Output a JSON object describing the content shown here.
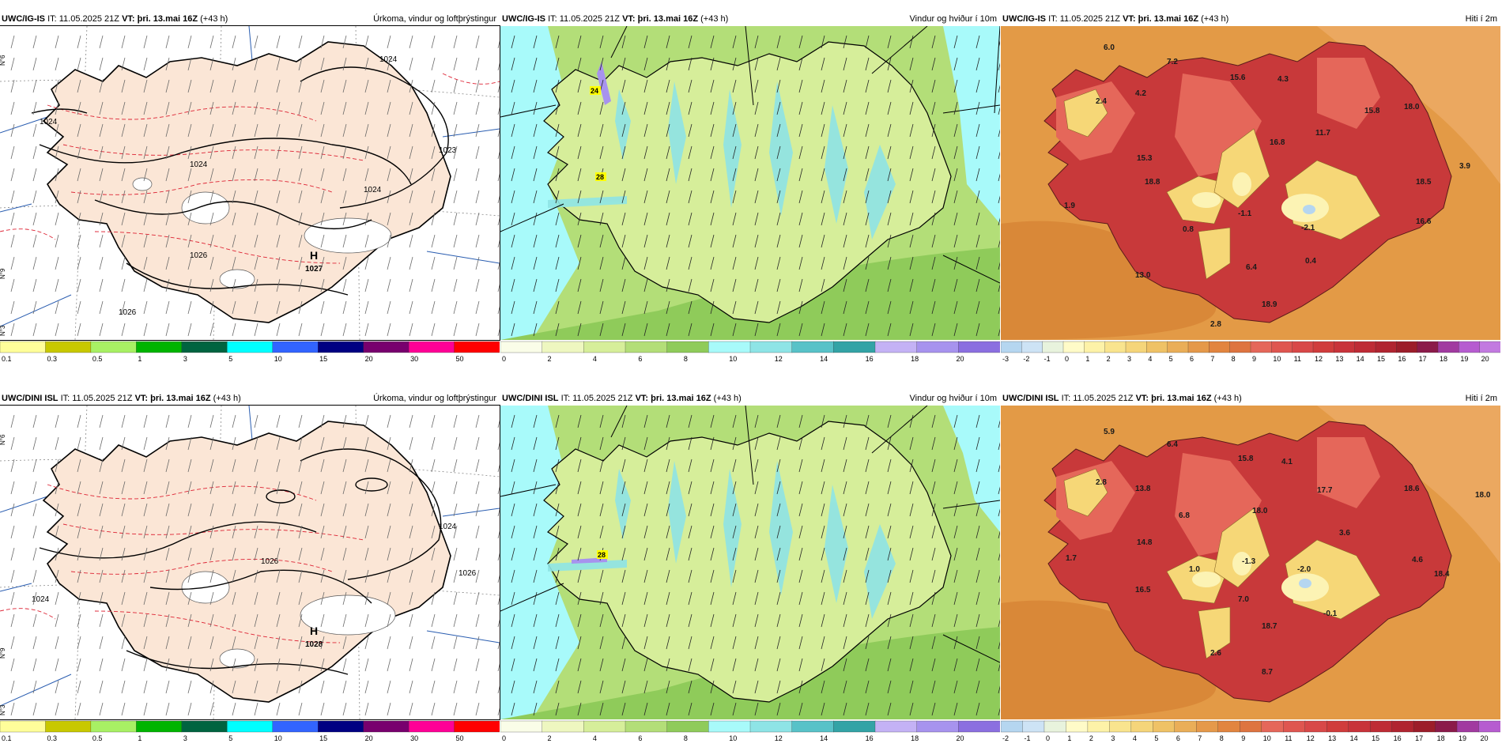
{
  "rows": [
    {
      "model": "UWC/IG-IS",
      "it_label": "IT:",
      "it_value": "11.05.2025 21Z",
      "vt_label": "VT:",
      "vt_value": "þri. 13.mai 16Z",
      "lead": "(+43 h)",
      "precip": {
        "title": "Úrkoma, vindur og loftþrýstingur",
        "isobars": [
          "1024",
          "1024",
          "1023",
          "1024",
          "1024",
          "1026",
          "1026",
          "1027"
        ],
        "high_label": "H",
        "high_value": "1027",
        "lat_labels": [
          "N°6",
          "N°9",
          "N°3"
        ]
      },
      "wind": {
        "title": "Vindur og hviður í 10m",
        "labels": [
          "24",
          "28"
        ]
      },
      "temp": {
        "title": "Hiti í 2m",
        "labels": [
          "6.0",
          "7.2",
          "2.4",
          "4.2",
          "15.6",
          "4.3",
          "15.8",
          "18.0",
          "16.8",
          "11.7",
          "15.3",
          "18.8",
          "3.9",
          "18.5",
          "1.9",
          "0.8",
          "-1.1",
          "-2.1",
          "16.6",
          "6.4",
          "0.4",
          "13.0",
          "18.9",
          "2.8"
        ]
      }
    },
    {
      "model": "UWC/DINI ISL",
      "it_label": "IT:",
      "it_value": "11.05.2025 21Z",
      "vt_label": "VT:",
      "vt_value": "þri. 13.mai 16Z",
      "lead": "(+43 h)",
      "precip": {
        "title": "Úrkoma, vindur og loftþrýstingur",
        "isobars": [
          "1024",
          "1024",
          "1026",
          "1026"
        ],
        "high_label": "H",
        "high_value": "1028",
        "lat_labels": [
          "N°6",
          "N°9",
          "N°3"
        ]
      },
      "wind": {
        "title": "Vindur og hviður í 10m",
        "labels": [
          "28"
        ]
      },
      "temp": {
        "title": "Hiti í 2m",
        "labels": [
          "5.9",
          "6.4",
          "2.8",
          "13.8",
          "15.8",
          "4.1",
          "17.7",
          "18.6",
          "18.0",
          "6.8",
          "18.0",
          "3.6",
          "14.8",
          "1.0",
          "-1.3",
          "-2.0",
          "4.6",
          "1.7",
          "18.4",
          "16.5",
          "7.0",
          "-0.1",
          "18.7",
          "2.6",
          "8.7"
        ]
      }
    }
  ],
  "legends": {
    "precip": [
      "0.1",
      "0.3",
      "0.5",
      "1",
      "3",
      "5",
      "10",
      "15",
      "20",
      "30",
      "50"
    ],
    "wind": [
      "0",
      "2",
      "4",
      "6",
      "8",
      "10",
      "12",
      "14",
      "16",
      "18",
      "20"
    ],
    "temp_top": [
      "-3",
      "-2",
      "-1",
      "0",
      "1",
      "2",
      "3",
      "4",
      "5",
      "6",
      "7",
      "8",
      "9",
      "10",
      "11",
      "12",
      "13",
      "14",
      "15",
      "16",
      "17",
      "18",
      "19",
      "20"
    ],
    "temp_bottom": [
      "-2",
      "-1",
      "0",
      "1",
      "2",
      "3",
      "4",
      "5",
      "6",
      "7",
      "8",
      "9",
      "10",
      "11",
      "12",
      "13",
      "14",
      "15",
      "16",
      "17",
      "18",
      "19",
      "20"
    ]
  },
  "colors": {
    "precip_scale": [
      "#fffe9a",
      "#c8c800",
      "#a8f064",
      "#00b400",
      "#006440",
      "#00ffff",
      "#3264ff",
      "#000082",
      "#78006e",
      "#ff0096",
      "#ff0000"
    ],
    "wind_scale": [
      "#fafde8",
      "#eef7c0",
      "#d6ee9a",
      "#b3de78",
      "#8fcb5a",
      "#a8fafa",
      "#8ee4e6",
      "#58c2c8",
      "#33a3a6",
      "#c4b2f5",
      "#a793ee",
      "#8b6fe0"
    ],
    "land_precip": "#fbe6d6"
  }
}
